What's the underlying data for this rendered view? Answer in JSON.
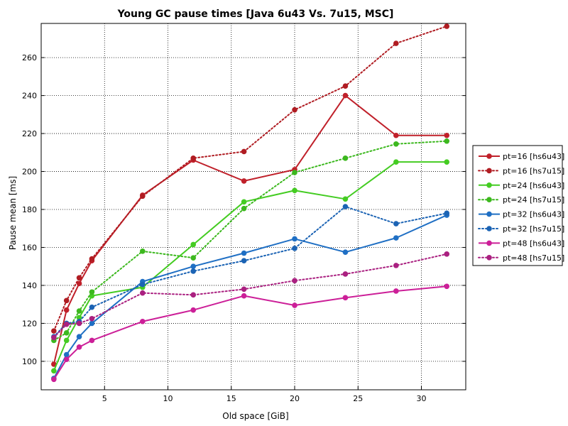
{
  "chart_data": {
    "type": "line",
    "title": "Young GC pause times [Java 6u43 Vs. 7u15, MSC]",
    "xlabel": "Old space [GiB]",
    "ylabel": "Pause mean [ms]",
    "xlim": [
      0,
      33.5
    ],
    "ylim": [
      85,
      278
    ],
    "xticks": [
      5,
      10,
      15,
      20,
      25,
      30
    ],
    "yticks": [
      100,
      120,
      140,
      160,
      180,
      200,
      220,
      240,
      260
    ],
    "grid": true,
    "legend_position": "right",
    "x": [
      1,
      2,
      3,
      4,
      8,
      12,
      16,
      20,
      24,
      28,
      32
    ],
    "series": [
      {
        "name": "pt=16 [hs6u43]",
        "color": "#c0202a",
        "style": "solid",
        "values": [
          98.5,
          127,
          141,
          153,
          187.5,
          206,
          195,
          201,
          240,
          219,
          219
        ]
      },
      {
        "name": "pt=16 [hs7u15]",
        "color": "#b01c22",
        "style": "dotted",
        "values": [
          116,
          132,
          144,
          154,
          187,
          207,
          210.5,
          232.5,
          245,
          267.5,
          276.5
        ]
      },
      {
        "name": "pt=24 [hs6u43]",
        "color": "#44cc22",
        "style": "solid",
        "values": [
          95,
          111,
          123,
          134.5,
          139,
          161.5,
          184,
          190,
          185.5,
          205,
          205
        ]
      },
      {
        "name": "pt=24 [hs7u15]",
        "color": "#3cb81e",
        "style": "dotted",
        "values": [
          111,
          115,
          126.5,
          136.5,
          158,
          154.5,
          180.5,
          199.5,
          207,
          214.5,
          216
        ]
      },
      {
        "name": "pt=32 [hs6u43]",
        "color": "#1f6fc4",
        "style": "solid",
        "values": [
          91,
          103.5,
          113,
          120,
          142,
          150,
          157,
          164.5,
          157.5,
          165,
          177
        ]
      },
      {
        "name": "pt=32 [hs7u15]",
        "color": "#1b63b4",
        "style": "dotted",
        "values": [
          113,
          120,
          121,
          128.5,
          140.5,
          147.5,
          153,
          159.5,
          181.5,
          172.5,
          178
        ]
      },
      {
        "name": "pt=48 [hs6u43]",
        "color": "#cc1f98",
        "style": "solid",
        "values": [
          90.5,
          101,
          107.5,
          111,
          121,
          127,
          134.5,
          129.5,
          133.5,
          137,
          139.5
        ]
      },
      {
        "name": "pt=48 [hs7u15]",
        "color": "#aa2080",
        "style": "dotted",
        "values": [
          112.5,
          119.5,
          120,
          122.5,
          136,
          135,
          138,
          142.5,
          146,
          150.5,
          156.5
        ]
      }
    ]
  }
}
